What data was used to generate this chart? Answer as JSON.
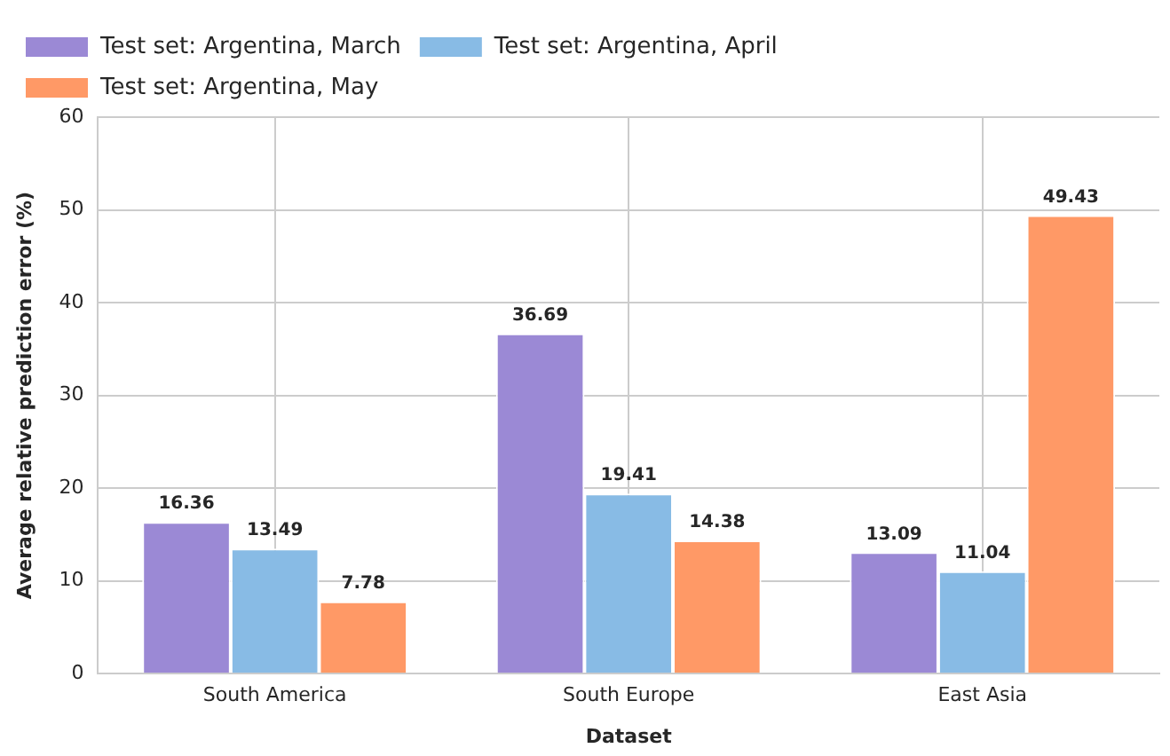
{
  "chart_data": {
    "type": "bar",
    "xlabel": "Dataset",
    "ylabel": "Average relative prediction error (%)",
    "categories": [
      "South America",
      "South Europe",
      "East Asia"
    ],
    "series": [
      {
        "name": "Test set: Argentina, March",
        "color": "#9b89d5",
        "values": [
          16.36,
          36.69,
          13.09
        ]
      },
      {
        "name": "Test set: Argentina, April",
        "color": "#88bbe5",
        "values": [
          13.49,
          19.41,
          11.04
        ]
      },
      {
        "name": "Test set: Argentina, May",
        "color": "#ff9966",
        "values": [
          7.78,
          14.38,
          49.43
        ]
      }
    ],
    "ylim": [
      0,
      60
    ],
    "yticks": [
      0,
      10,
      20,
      30,
      40,
      50,
      60
    ],
    "grid": true,
    "legend": "top left",
    "data_labels": true
  }
}
